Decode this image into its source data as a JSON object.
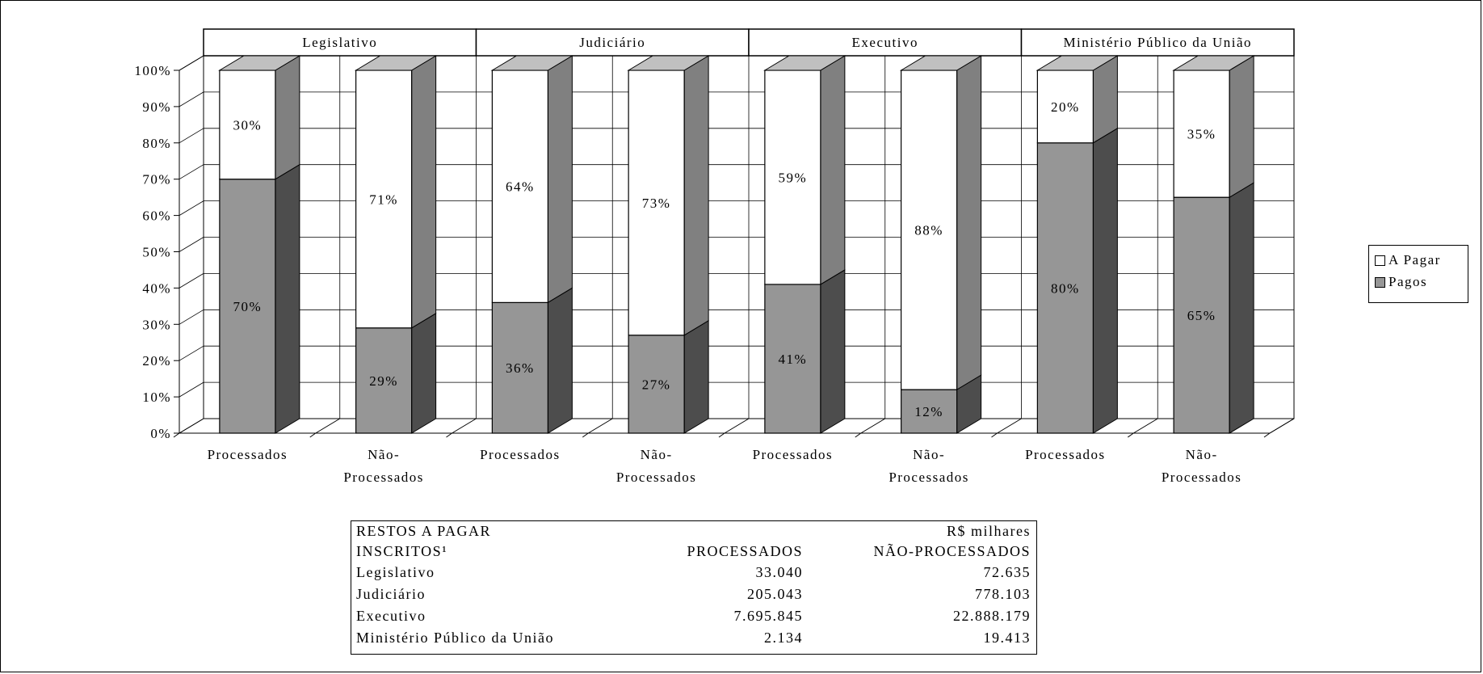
{
  "chart_data": {
    "type": "bar",
    "stacked": true,
    "percent": true,
    "three_d": true,
    "groups": [
      "Legislativo",
      "Judiciário",
      "Executivo",
      "Ministério Público da União"
    ],
    "categories": [
      "Processados",
      "Não-\nProcessados",
      "Processados",
      "Não-\nProcessados",
      "Processados",
      "Não-\nProcessados",
      "Processados",
      "Não-\nProcessados"
    ],
    "series": [
      {
        "name": "Pagos",
        "color": "#969696",
        "values": [
          70,
          29,
          36,
          27,
          41,
          12,
          80,
          65
        ],
        "labels": [
          "70%",
          "29%",
          "36%",
          "27%",
          "41%",
          "12%",
          "80%",
          "65%"
        ]
      },
      {
        "name": "A Pagar",
        "color": "#ffffff",
        "values": [
          30,
          71,
          64,
          73,
          59,
          88,
          20,
          35
        ],
        "labels": [
          "30%",
          "71%",
          "64%",
          "73%",
          "59%",
          "88%",
          "20%",
          "35%"
        ]
      }
    ],
    "ylim": [
      0,
      100
    ],
    "yticks": [
      "0%",
      "10%",
      "20%",
      "30%",
      "40%",
      "50%",
      "60%",
      "70%",
      "80%",
      "90%",
      "100%"
    ],
    "grid": true,
    "legend_position": "right",
    "legend": [
      "A Pagar",
      "Pagos"
    ]
  },
  "table": {
    "title_left": "RESTOS A PAGAR",
    "title_right": "R$ milhares",
    "header": [
      "INSCRITOS¹",
      "PROCESSADOS",
      "NÃO-PROCESSADOS"
    ],
    "rows": [
      [
        "Legislativo",
        "33.040",
        "72.635"
      ],
      [
        "Judiciário",
        "205.043",
        "778.103"
      ],
      [
        "Executivo",
        "7.695.845",
        "22.888.179"
      ],
      [
        "Ministério Público da União",
        "2.134",
        "19.413"
      ]
    ]
  }
}
